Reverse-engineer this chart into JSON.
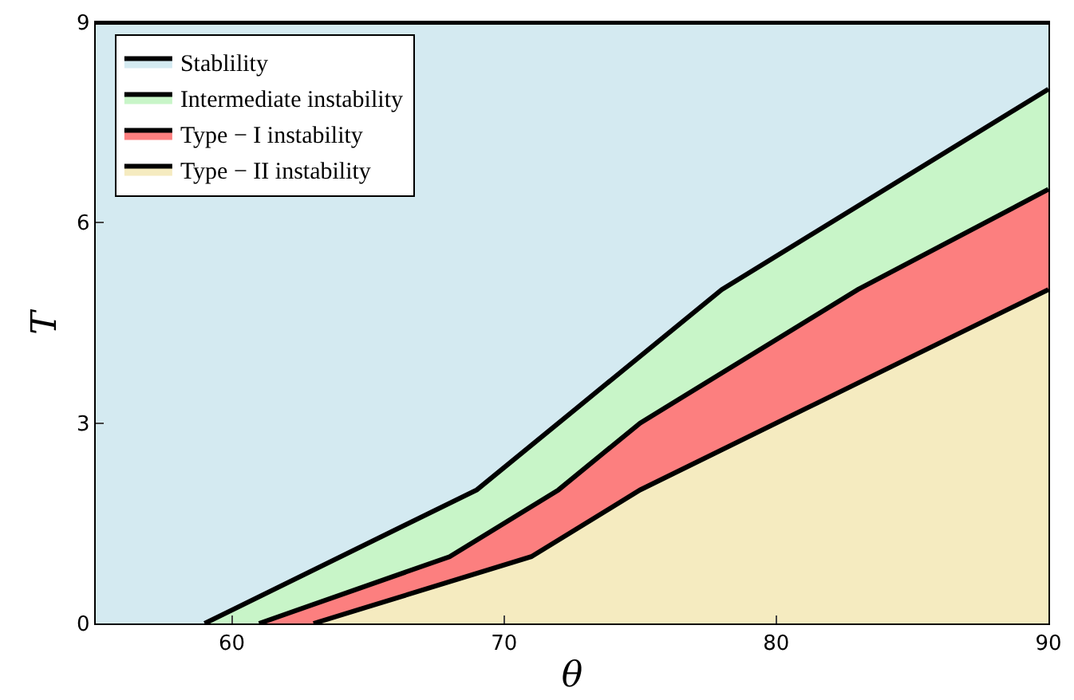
{
  "chart_data": {
    "type": "area",
    "xlabel": "θ",
    "ylabel": "T",
    "xlim": [
      55,
      90
    ],
    "ylim": [
      0,
      9
    ],
    "xticks": [
      60,
      70,
      80,
      90
    ],
    "yticks": [
      0,
      3,
      6,
      9
    ],
    "legend": "top left",
    "marker": "none",
    "line_style": "solid",
    "series": [
      {
        "name": "Stablility",
        "color": "#d4eaf1",
        "x": [
          55,
          90
        ],
        "values": [
          9,
          9
        ]
      },
      {
        "name": "Intermediate instability",
        "color": "#c8f5c8",
        "x": [
          59,
          69,
          78,
          90
        ],
        "values": [
          0,
          2,
          5,
          8
        ]
      },
      {
        "name": "Type − I instability",
        "color": "#fc7f7f",
        "x": [
          61,
          68,
          72,
          75,
          83,
          90
        ],
        "values": [
          0,
          1,
          2,
          3,
          5,
          6.5
        ]
      },
      {
        "name": "Type − II instability",
        "color": "#f5ebc0",
        "x": [
          63,
          71,
          75,
          90
        ],
        "values": [
          0,
          1,
          2,
          5
        ]
      }
    ]
  }
}
